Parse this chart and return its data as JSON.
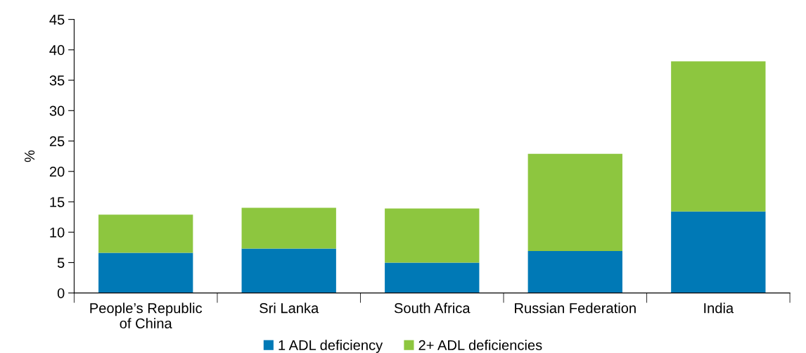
{
  "chart_data": {
    "type": "bar",
    "stacked": true,
    "ylabel": "%",
    "categories": [
      "People’s Republic\nof China",
      "Sri Lanka",
      "South Africa",
      "Russian Federation",
      "India"
    ],
    "series": [
      {
        "name": "1 ADL deficiency",
        "color": "#0079b6",
        "values": [
          6.6,
          7.3,
          5.0,
          6.9,
          13.4
        ]
      },
      {
        "name": "2+ ADL deficiencies",
        "color": "#8dc63f",
        "values": [
          6.3,
          6.7,
          8.9,
          16.0,
          24.7
        ]
      }
    ],
    "ylim": [
      0,
      45
    ],
    "yticks": [
      0,
      5,
      10,
      15,
      20,
      25,
      30,
      35,
      40,
      45
    ],
    "grid": false,
    "legend": "bottom"
  }
}
